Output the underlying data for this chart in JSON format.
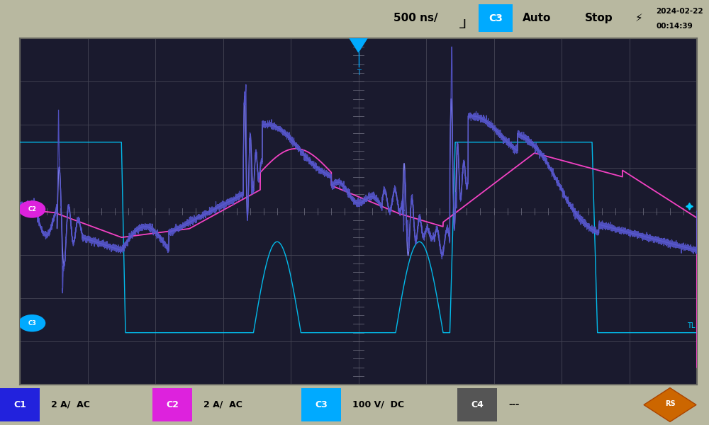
{
  "bg_color": "#b8b8a0",
  "screen_bg": "#1a1a2e",
  "top_bar_bg": "#b8b8a0",
  "bottom_bar_bg": "#b8b8a0",
  "header_text": "500 ns/",
  "header_auto": "Auto",
  "header_stop": "Stop",
  "header_date": "2024-02-22",
  "header_time": "00:14:39",
  "ch1_color": "#5555cc",
  "ch2_color": "#ff44cc",
  "ch3_color": "#00ccff",
  "ch4_color": "#8888ff",
  "ch1_label": "C1",
  "ch2_label": "C2",
  "ch3_label": "C3",
  "ch4_label": "C4",
  "ch1_scale": "2 A/  AC",
  "ch2_scale": "2 A/  AC",
  "ch3_scale": "100 V/  DC",
  "ch4_scale": "---",
  "ch1_box_color": "#2222dd",
  "ch2_box_color": "#dd22dd",
  "ch3_box_color": "#00aaff",
  "ch4_box_color": "#555555",
  "trigger_color": "#00aaff",
  "grid_line_color": "#444455",
  "tick_color": "#666677",
  "grid_rows": 8,
  "grid_cols": 10,
  "xlim": [
    0,
    10
  ],
  "ylim": [
    0,
    8
  ]
}
